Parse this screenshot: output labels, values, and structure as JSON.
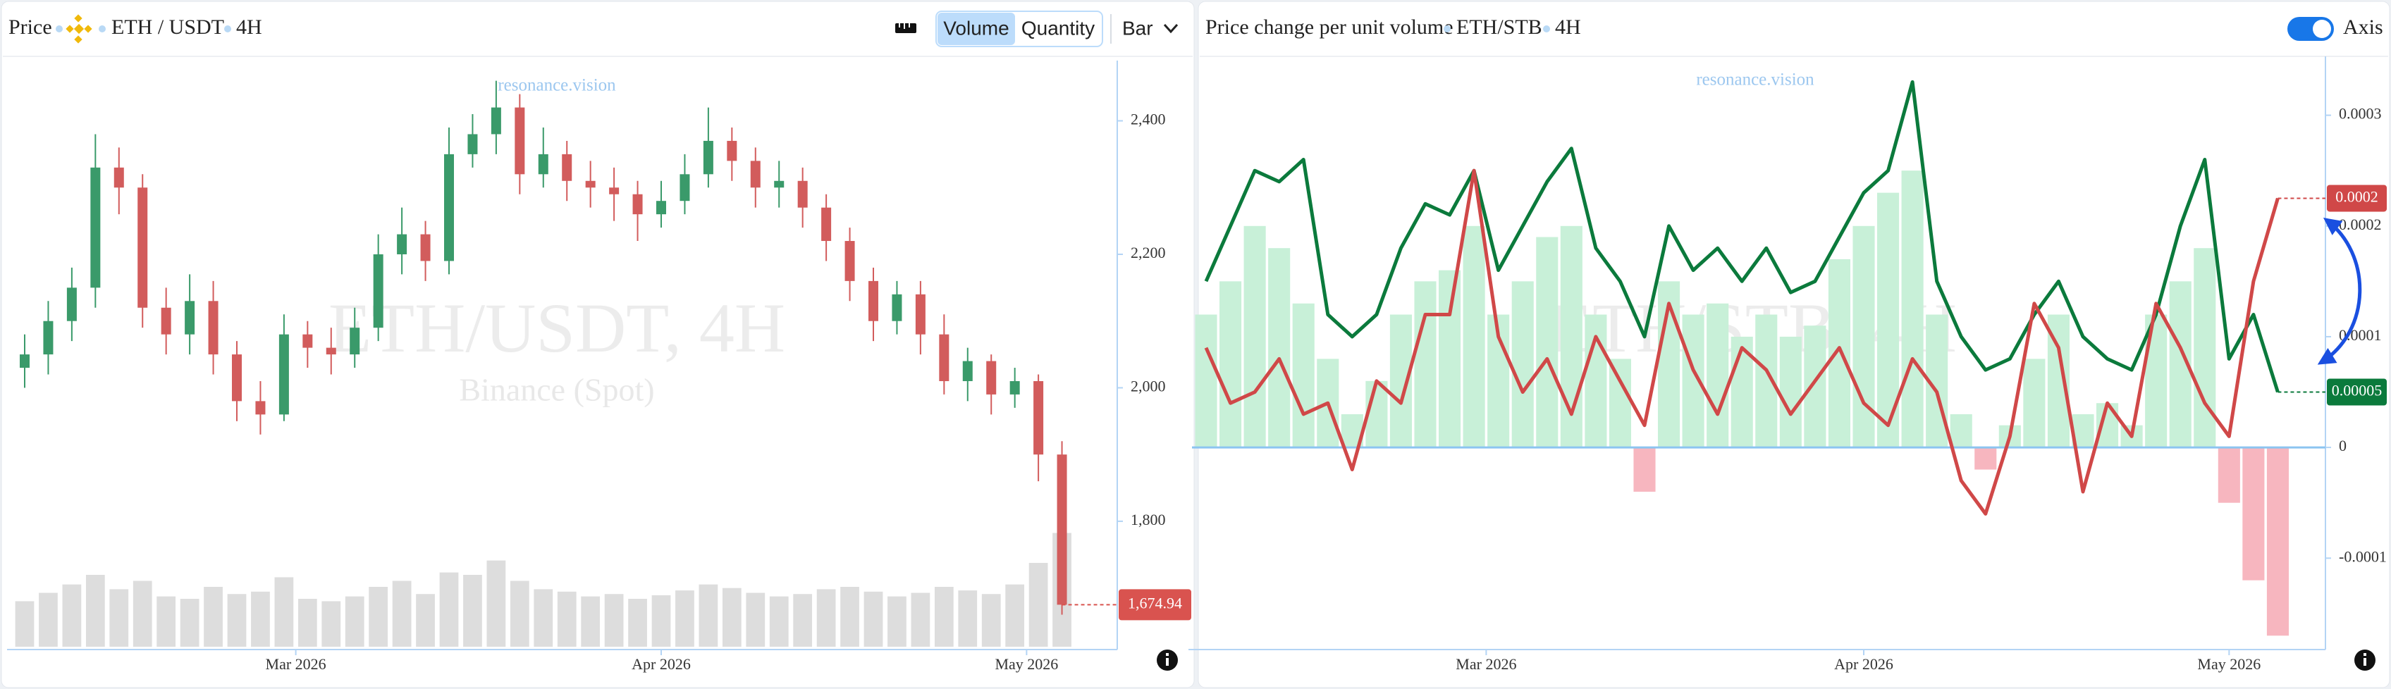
{
  "left_panel": {
    "title": "Price",
    "pair": "ETH / USDT",
    "interval": "4H",
    "buttons": [
      "Volume",
      "Quantity"
    ],
    "chart_style": "Bar"
  },
  "right_panel": {
    "title": "Price change per unit volume",
    "pair": "ETH/STB",
    "interval": "4H",
    "toggle": "Axis"
  },
  "chart_data": [
    {
      "type": "candlestick",
      "watermark": "ETH/USDT, 4H",
      "watermark_sub": "Binance (Spot)",
      "credit": "resonance.vision",
      "up_color": "#3a9a6a",
      "down_color": "#d25c5c",
      "volume_color": "#dddddd",
      "x": [
        0,
        2,
        4,
        6,
        8,
        10,
        12,
        14,
        16,
        18,
        20,
        22,
        24,
        26,
        28,
        30,
        32,
        34,
        36,
        38,
        40,
        42,
        44,
        46,
        48,
        50,
        52,
        54,
        56,
        58,
        60,
        62,
        64,
        66,
        68,
        70,
        72,
        74,
        76,
        78,
        80,
        82,
        84,
        86,
        88
      ],
      "open": [
        2030,
        2050,
        2100,
        2150,
        2330,
        2300,
        2120,
        2080,
        2130,
        2050,
        1980,
        1960,
        2080,
        2060,
        2050,
        2090,
        2200,
        2230,
        2190,
        2350,
        2380,
        2420,
        2320,
        2350,
        2310,
        2300,
        2290,
        2260,
        2280,
        2320,
        2370,
        2340,
        2300,
        2310,
        2270,
        2220,
        2160,
        2100,
        2140,
        2080,
        2010,
        2040,
        1990,
        2010,
        1900
      ],
      "high": [
        2080,
        2130,
        2180,
        2380,
        2360,
        2320,
        2150,
        2170,
        2160,
        2070,
        2010,
        2110,
        2100,
        2090,
        2120,
        2230,
        2270,
        2250,
        2390,
        2410,
        2460,
        2440,
        2390,
        2370,
        2340,
        2330,
        2310,
        2310,
        2350,
        2420,
        2390,
        2360,
        2340,
        2330,
        2290,
        2240,
        2180,
        2160,
        2160,
        2110,
        2060,
        2050,
        2030,
        2020,
        1920
      ],
      "low": [
        2000,
        2020,
        2070,
        2120,
        2260,
        2090,
        2050,
        2050,
        2020,
        1950,
        1930,
        1950,
        2030,
        2020,
        2030,
        2070,
        2170,
        2160,
        2170,
        2330,
        2350,
        2290,
        2300,
        2280,
        2270,
        2250,
        2220,
        2240,
        2260,
        2300,
        2310,
        2270,
        2270,
        2240,
        2190,
        2130,
        2070,
        2080,
        2050,
        1990,
        1980,
        1960,
        1970,
        1860,
        1660
      ],
      "close": [
        2050,
        2100,
        2150,
        2330,
        2300,
        2120,
        2080,
        2130,
        2050,
        1980,
        1960,
        2080,
        2060,
        2050,
        2090,
        2200,
        2230,
        2190,
        2350,
        2380,
        2420,
        2320,
        2350,
        2310,
        2300,
        2290,
        2260,
        2280,
        2320,
        2370,
        2340,
        2300,
        2310,
        2270,
        2220,
        2160,
        2100,
        2140,
        2080,
        2010,
        2040,
        1990,
        2010,
        1900,
        1674.94
      ],
      "volume": [
        38,
        45,
        52,
        60,
        48,
        55,
        42,
        40,
        50,
        44,
        46,
        58,
        40,
        38,
        42,
        50,
        55,
        44,
        62,
        60,
        72,
        55,
        48,
        46,
        42,
        44,
        40,
        43,
        47,
        52,
        49,
        45,
        42,
        44,
        48,
        50,
        46,
        42,
        45,
        50,
        47,
        44,
        52,
        70,
        95
      ],
      "price_line": {
        "value": 1674.94,
        "label": "1,674.94",
        "color": "#d9534f"
      },
      "xlim": [
        0,
        90
      ],
      "xticks": [
        {
          "value": 23,
          "label": "Mar 2026"
        },
        {
          "value": 54,
          "label": "Apr 2026"
        },
        {
          "value": 85,
          "label": "May 2026"
        }
      ],
      "ylim": [
        1612,
        2485
      ],
      "yticks": [
        {
          "value": 2400,
          "label": "2,400"
        },
        {
          "value": 2200,
          "label": "2,200"
        },
        {
          "value": 2000,
          "label": "2,000"
        },
        {
          "value": 1800,
          "label": "1,800"
        }
      ]
    },
    {
      "type": "line",
      "watermark": "ETH/STB, 4H",
      "credit": "resonance.vision",
      "x": [
        0,
        2,
        4,
        6,
        8,
        10,
        12,
        14,
        16,
        18,
        20,
        22,
        24,
        26,
        28,
        30,
        32,
        34,
        36,
        38,
        40,
        42,
        44,
        46,
        48,
        50,
        52,
        54,
        56,
        58,
        60,
        62,
        64,
        66,
        68,
        70,
        72,
        74,
        76,
        78,
        80,
        82,
        84,
        86,
        88
      ],
      "series": [
        {
          "color": "#0b7a3c",
          "values": [
            0.00015,
            0.0002,
            0.00025,
            0.00024,
            0.00026,
            0.00012,
            0.0001,
            0.00012,
            0.00018,
            0.00022,
            0.00021,
            0.00025,
            0.00016,
            0.0002,
            0.00024,
            0.00027,
            0.00018,
            0.00015,
            0.0001,
            0.0002,
            0.00016,
            0.00018,
            0.00015,
            0.00018,
            0.00014,
            0.00015,
            0.00019,
            0.00023,
            0.00025,
            0.00033,
            0.00015,
            0.0001,
            7e-05,
            8e-05,
            0.00012,
            0.00015,
            0.0001,
            8e-05,
            7e-05,
            0.00012,
            0.0002,
            0.00026,
            8e-05,
            0.00012,
            5e-05
          ]
        },
        {
          "color": "#d04848",
          "values": [
            9e-05,
            4e-05,
            5e-05,
            8e-05,
            3e-05,
            4e-05,
            -2e-05,
            6e-05,
            4e-05,
            0.00012,
            0.00012,
            0.00025,
            0.0001,
            5e-05,
            8e-05,
            3e-05,
            0.0001,
            6e-05,
            2e-05,
            0.00013,
            7e-05,
            3e-05,
            9e-05,
            7e-05,
            3e-05,
            6e-05,
            9e-05,
            4e-05,
            2e-05,
            8e-05,
            5e-05,
            -3e-05,
            -6e-05,
            1e-05,
            0.00013,
            9e-05,
            -4e-05,
            4e-05,
            1e-05,
            0.00013,
            9e-05,
            4e-05,
            1e-05,
            0.00015,
            0.000225
          ]
        }
      ],
      "histogram": {
        "color": "#c8f0d8",
        "negative_color": "#f7b6bf",
        "values": [
          0.00012,
          0.00015,
          0.0002,
          0.00018,
          0.00013,
          8e-05,
          3e-05,
          6e-05,
          0.00012,
          0.00015,
          0.00016,
          0.0002,
          0.00012,
          0.00015,
          0.00019,
          0.0002,
          0.00012,
          8e-05,
          -4e-05,
          0.00015,
          0.00012,
          0.00013,
          0.0001,
          0.00012,
          0.0001,
          0.00011,
          0.00017,
          0.0002,
          0.00023,
          0.00025,
          0.00012,
          3e-05,
          -2e-05,
          2e-05,
          8e-05,
          0.00012,
          3e-05,
          4e-05,
          2e-05,
          0.00012,
          0.00015,
          0.00018,
          -5e-05,
          -0.00012,
          -0.00017
        ]
      },
      "price_lines": [
        {
          "value": 0.000225,
          "label": "0.0002",
          "color": "#d04848"
        },
        {
          "value": 5e-05,
          "color": "#0b7a3c"
        }
      ],
      "xlim": [
        0,
        90
      ],
      "xticks": [
        {
          "value": 23,
          "label": "Mar 2026"
        },
        {
          "value": 54,
          "label": "Apr 2026"
        },
        {
          "value": 84,
          "label": "May 2026"
        }
      ],
      "ylim": [
        -0.00018,
        0.00035
      ],
      "yticks": [
        0.0003,
        0.0002,
        0.0001,
        0,
        -0.0001
      ]
    }
  ]
}
